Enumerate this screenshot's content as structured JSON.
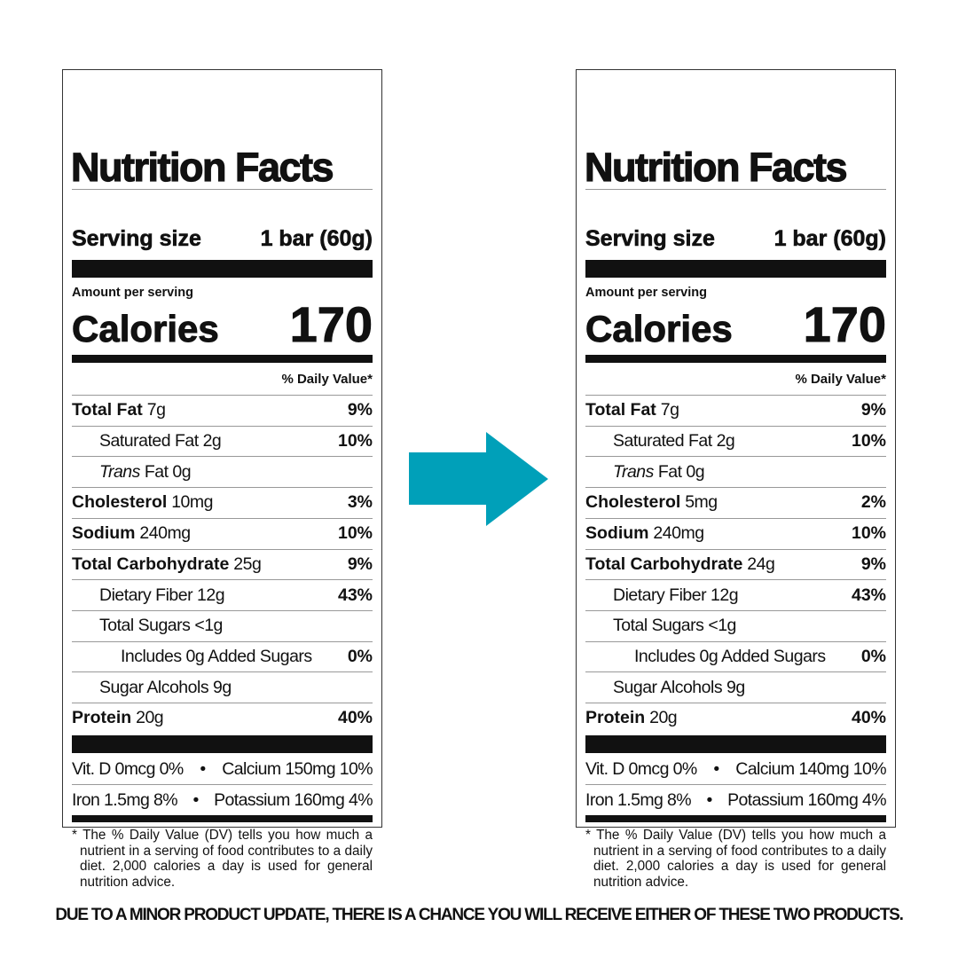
{
  "labels": [
    {
      "title": "Nutrition Facts",
      "serving_label": "Serving size",
      "serving_value": "1 bar (60g)",
      "amount_per_serving": "Amount per serving",
      "calories_label": "Calories",
      "calories": "170",
      "dv_header": "% Daily Value*",
      "rows": [
        {
          "name": "Total Fat",
          "amount": "7g",
          "dv": "9%",
          "indent": 0,
          "bold": true
        },
        {
          "name": "Saturated Fat",
          "amount": "2g",
          "dv": "10%",
          "indent": 1
        },
        {
          "name": "Trans",
          "amount": "Fat 0g",
          "dv": "",
          "indent": 1,
          "italic": true
        },
        {
          "name": "Cholesterol",
          "amount": "10mg",
          "dv": "3%",
          "indent": 0,
          "bold": true
        },
        {
          "name": "Sodium",
          "amount": "240mg",
          "dv": "10%",
          "indent": 0,
          "bold": true
        },
        {
          "name": "Total Carbohydrate",
          "amount": "25g",
          "dv": "9%",
          "indent": 0,
          "bold": true
        },
        {
          "name": "Dietary Fiber",
          "amount": "12g",
          "dv": "43%",
          "indent": 1
        },
        {
          "name": "Total Sugars",
          "amount": "<1g",
          "dv": "",
          "indent": 1
        },
        {
          "name": "Includes 0g Added Sugars",
          "amount": "",
          "dv": "0%",
          "indent": 2
        },
        {
          "name": "Sugar Alcohols",
          "amount": "9g",
          "dv": "",
          "indent": 1
        },
        {
          "name": "Protein",
          "amount": "20g",
          "dv": "40%",
          "indent": 0,
          "bold": true
        }
      ],
      "micros": [
        [
          "Vit. D 0mcg 0%",
          "•",
          "Calcium 150mg 10%"
        ],
        [
          "Iron 1.5mg 8%",
          "•",
          "Potassium 160mg 4%"
        ]
      ],
      "footnote": "* The % Daily Value (DV) tells you how much a nutrient in a serving of food contributes to a daily diet. 2,000 calories a day is used for general nutrition advice."
    },
    {
      "title": "Nutrition Facts",
      "serving_label": "Serving size",
      "serving_value": "1 bar (60g)",
      "amount_per_serving": "Amount per serving",
      "calories_label": "Calories",
      "calories": "170",
      "dv_header": "% Daily Value*",
      "rows": [
        {
          "name": "Total Fat",
          "amount": "7g",
          "dv": "9%",
          "indent": 0,
          "bold": true
        },
        {
          "name": "Saturated Fat",
          "amount": "2g",
          "dv": "10%",
          "indent": 1
        },
        {
          "name": "Trans",
          "amount": "Fat 0g",
          "dv": "",
          "indent": 1,
          "italic": true
        },
        {
          "name": "Cholesterol",
          "amount": "5mg",
          "dv": "2%",
          "indent": 0,
          "bold": true
        },
        {
          "name": "Sodium",
          "amount": "240mg",
          "dv": "10%",
          "indent": 0,
          "bold": true
        },
        {
          "name": "Total Carbohydrate",
          "amount": "24g",
          "dv": "9%",
          "indent": 0,
          "bold": true
        },
        {
          "name": "Dietary Fiber",
          "amount": "12g",
          "dv": "43%",
          "indent": 1
        },
        {
          "name": "Total Sugars",
          "amount": "<1g",
          "dv": "",
          "indent": 1
        },
        {
          "name": "Includes 0g Added Sugars",
          "amount": "",
          "dv": "0%",
          "indent": 2
        },
        {
          "name": "Sugar Alcohols",
          "amount": "9g",
          "dv": "",
          "indent": 1
        },
        {
          "name": "Protein",
          "amount": "20g",
          "dv": "40%",
          "indent": 0,
          "bold": true
        }
      ],
      "micros": [
        [
          "Vit. D 0mcg 0%",
          "•",
          "Calcium 140mg 10%"
        ],
        [
          "Iron 1.5mg 8%",
          "•",
          "Potassium 160mg 4%"
        ]
      ],
      "footnote": "* The % Daily Value (DV) tells you how much a nutrient in a serving of food contributes to a daily diet. 2,000 calories a day is used for general nutrition advice."
    }
  ],
  "arrow": {
    "icon": "arrow-right-icon",
    "color": "#00a0b9"
  },
  "banner": "DUE TO A MINOR PRODUCT UPDATE, THERE IS A CHANCE YOU WILL RECEIVE EITHER OF THESE TWO PRODUCTS."
}
